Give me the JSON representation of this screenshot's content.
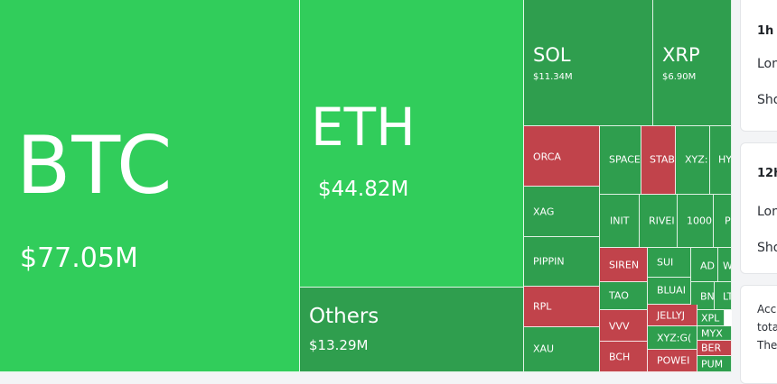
{
  "treemap": {
    "tiles": [
      {
        "id": "btc",
        "symbol": "BTC",
        "value": "$77.05M"
      },
      {
        "id": "eth",
        "symbol": "ETH",
        "value": "$44.82M"
      },
      {
        "id": "others",
        "symbol": "Others",
        "value": "$13.29M"
      },
      {
        "id": "sol",
        "symbol": "SOL",
        "value": "$11.34M"
      },
      {
        "id": "xrp",
        "symbol": "XRP",
        "value": "$6.90M"
      },
      {
        "id": "orca",
        "symbol": "ORCA"
      },
      {
        "id": "xag",
        "symbol": "XAG"
      },
      {
        "id": "pippin",
        "symbol": "PIPPIN"
      },
      {
        "id": "rpl",
        "symbol": "RPL"
      },
      {
        "id": "xau",
        "symbol": "XAU"
      },
      {
        "id": "space",
        "symbol": "SPACE"
      },
      {
        "id": "stab",
        "symbol": "STAB"
      },
      {
        "id": "xyz",
        "symbol": "XYZ:"
      },
      {
        "id": "hy",
        "symbol": "HY"
      },
      {
        "id": "init",
        "symbol": "INIT"
      },
      {
        "id": "river",
        "symbol": "RIVEI"
      },
      {
        "id": "1000",
        "symbol": "1000I"
      },
      {
        "id": "p",
        "symbol": "P"
      },
      {
        "id": "siren",
        "symbol": "SIREN"
      },
      {
        "id": "sui",
        "symbol": "SUI"
      },
      {
        "id": "ad",
        "symbol": "AD"
      },
      {
        "id": "w",
        "symbol": "W"
      },
      {
        "id": "tao",
        "symbol": "TAO"
      },
      {
        "id": "bluai",
        "symbol": "BLUAI"
      },
      {
        "id": "bn",
        "symbol": "BN"
      },
      {
        "id": "lt",
        "symbol": "LT"
      },
      {
        "id": "vvv",
        "symbol": "VVV"
      },
      {
        "id": "jellyj",
        "symbol": "JELLYJ"
      },
      {
        "id": "xpl",
        "symbol": "XPL"
      },
      {
        "id": "myx",
        "symbol": "MYX"
      },
      {
        "id": "xyzgo",
        "symbol": "XYZ:G("
      },
      {
        "id": "ber",
        "symbol": "BER"
      },
      {
        "id": "bch",
        "symbol": "BCH"
      },
      {
        "id": "power",
        "symbol": "POWEI"
      },
      {
        "id": "pum",
        "symbol": "PUM"
      }
    ]
  },
  "side": {
    "card1": {
      "title": "1h",
      "long": "Lon",
      "short": "Sho"
    },
    "card2": {
      "title": "12h",
      "long": "Lon",
      "short": "Sho"
    },
    "card3": {
      "line1": "Acc",
      "line2": "tota",
      "line3": "The"
    }
  },
  "colors": {
    "up_bright": "#31cd5b",
    "up_dark": "#2f9e4e",
    "down": "#c1434b"
  }
}
